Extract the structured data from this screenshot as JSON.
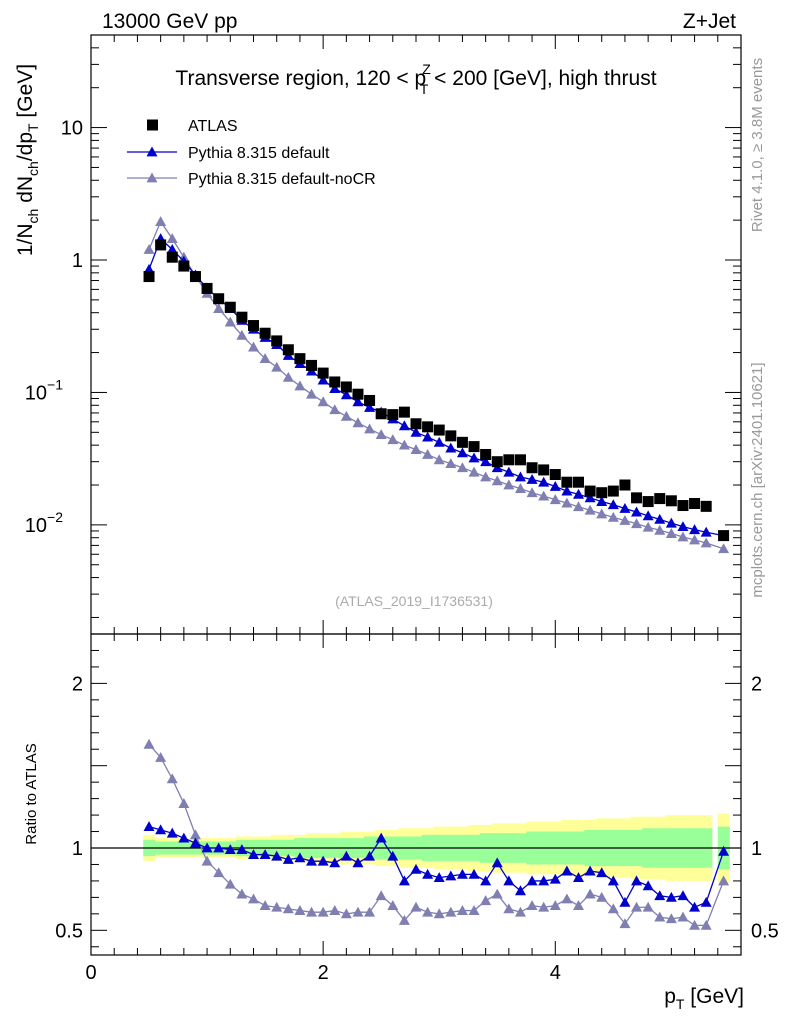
{
  "header": {
    "left": "13000 GeV pp",
    "right": "Z+Jet"
  },
  "side_labels": {
    "rivet": "Rivet 4.1.0, ≥ 3.8M events",
    "mcplots": "mcplots.cern.ch [arXiv:2401.10621]"
  },
  "colors": {
    "atlas": "#000000",
    "default": "#0000cc",
    "nocr": "#7f7fb2",
    "band_inner": "#99ff99",
    "band_outer": "#ffff99"
  },
  "chart_data": [
    {
      "type": "scatter",
      "panel": "main",
      "title": "Transverse region, 120 < p_T^Z < 200 [GeV], high thrust",
      "title_parts": {
        "a": "Transverse region, 120 < p",
        "sup": "Z",
        "sub": "T",
        "b": " < 200 [GeV], high thrust"
      },
      "watermark": "(ATLAS_2019_I1736531)",
      "xlabel": "p_T [GeV]",
      "xlabel_parts": {
        "main": "p",
        "sub": "T",
        "unit": " [GeV]"
      },
      "ylabel": "1/N_ch dN_ch/dp_T [GeV]",
      "y_scale": "log",
      "xlim": [
        0,
        5.6
      ],
      "ylim": [
        0.0015,
        50
      ],
      "x_ticks": [
        0,
        2,
        4
      ],
      "y_ticks": [
        {
          "value": 10,
          "label": "10"
        },
        {
          "value": 1,
          "label": "1"
        },
        {
          "value": 0.1,
          "label": "10",
          "exp": "−1"
        },
        {
          "value": 0.01,
          "label": "10",
          "exp": "−2"
        }
      ],
      "legend": {
        "position": "top-left"
      },
      "x": [
        0.5,
        0.6,
        0.7,
        0.8,
        0.9,
        1.0,
        1.1,
        1.2,
        1.3,
        1.4,
        1.5,
        1.6,
        1.7,
        1.8,
        1.9,
        2.0,
        2.1,
        2.2,
        2.3,
        2.4,
        2.5,
        2.6,
        2.7,
        2.8,
        2.9,
        3.0,
        3.1,
        3.2,
        3.3,
        3.4,
        3.5,
        3.6,
        3.7,
        3.8,
        3.9,
        4.0,
        4.1,
        4.2,
        4.3,
        4.4,
        4.5,
        4.6,
        4.7,
        4.8,
        4.9,
        5.0,
        5.1,
        5.2,
        5.3,
        5.45
      ],
      "series": [
        {
          "name": "ATLAS",
          "marker": "square",
          "values": [
            0.75,
            1.3,
            1.05,
            0.9,
            0.75,
            0.61,
            0.51,
            0.44,
            0.37,
            0.32,
            0.28,
            0.245,
            0.21,
            0.18,
            0.16,
            0.14,
            0.12,
            0.11,
            0.097,
            0.087,
            0.069,
            0.068,
            0.071,
            0.058,
            0.055,
            0.052,
            0.047,
            0.042,
            0.039,
            0.034,
            0.03,
            0.031,
            0.031,
            0.027,
            0.026,
            0.024,
            0.021,
            0.021,
            0.018,
            0.0175,
            0.018,
            0.02,
            0.016,
            0.015,
            0.0158,
            0.0152,
            0.014,
            0.0145,
            0.0138,
            0.0083
          ]
        },
        {
          "name": "Pythia 8.315 default",
          "marker": "triangle",
          "line": true,
          "values": [
            0.85,
            1.45,
            1.2,
            0.98,
            0.77,
            0.61,
            0.51,
            0.43,
            0.35,
            0.3,
            0.26,
            0.23,
            0.19,
            0.165,
            0.145,
            0.124,
            0.107,
            0.096,
            0.085,
            0.077,
            0.071,
            0.063,
            0.056,
            0.05,
            0.046,
            0.042,
            0.038,
            0.035,
            0.032,
            0.03,
            0.027,
            0.025,
            0.023,
            0.022,
            0.021,
            0.0195,
            0.018,
            0.017,
            0.016,
            0.015,
            0.0142,
            0.0133,
            0.0125,
            0.0117,
            0.011,
            0.0103,
            0.0097,
            0.0092,
            0.0088,
            0.0083
          ]
        },
        {
          "name": "Pythia 8.315 default-noCR",
          "marker": "triangle",
          "line": true,
          "values": [
            1.2,
            1.95,
            1.45,
            1.05,
            0.76,
            0.56,
            0.43,
            0.34,
            0.27,
            0.22,
            0.18,
            0.155,
            0.13,
            0.112,
            0.097,
            0.085,
            0.074,
            0.066,
            0.059,
            0.053,
            0.048,
            0.044,
            0.04,
            0.037,
            0.034,
            0.031,
            0.029,
            0.027,
            0.025,
            0.023,
            0.0215,
            0.02,
            0.0188,
            0.0175,
            0.0165,
            0.0155,
            0.0146,
            0.0137,
            0.0129,
            0.0121,
            0.0114,
            0.0108,
            0.0102,
            0.0096,
            0.0091,
            0.0086,
            0.0081,
            0.0077,
            0.0073,
            0.0066
          ]
        }
      ]
    },
    {
      "type": "line",
      "panel": "ratio",
      "ylabel": "Ratio to ATLAS",
      "xlim": [
        0,
        5.6
      ],
      "ylim": [
        0.35,
        2.3
      ],
      "x_ticks": [
        0,
        2,
        4
      ],
      "y_ticks": [
        {
          "value": 2,
          "label": "2"
        },
        {
          "value": 1,
          "label": "1"
        },
        {
          "value": 0.5,
          "label": "0.5"
        }
      ],
      "reference_line": 1,
      "x": [
        0.5,
        0.6,
        0.7,
        0.8,
        0.9,
        1.0,
        1.1,
        1.2,
        1.3,
        1.4,
        1.5,
        1.6,
        1.7,
        1.8,
        1.9,
        2.0,
        2.1,
        2.2,
        2.3,
        2.4,
        2.5,
        2.6,
        2.7,
        2.8,
        2.9,
        3.0,
        3.1,
        3.2,
        3.3,
        3.4,
        3.5,
        3.6,
        3.7,
        3.8,
        3.9,
        4.0,
        4.1,
        4.2,
        4.3,
        4.4,
        4.5,
        4.6,
        4.7,
        4.8,
        4.9,
        5.0,
        5.1,
        5.2,
        5.3,
        5.45
      ],
      "uncertainty_inner": [
        0.05,
        0.04,
        0.04,
        0.04,
        0.04,
        0.04,
        0.04,
        0.04,
        0.05,
        0.05,
        0.05,
        0.05,
        0.05,
        0.06,
        0.06,
        0.06,
        0.06,
        0.06,
        0.06,
        0.07,
        0.07,
        0.07,
        0.07,
        0.07,
        0.08,
        0.08,
        0.08,
        0.08,
        0.08,
        0.09,
        0.09,
        0.09,
        0.09,
        0.1,
        0.1,
        0.1,
        0.1,
        0.1,
        0.11,
        0.11,
        0.11,
        0.11,
        0.11,
        0.12,
        0.12,
        0.12,
        0.12,
        0.12,
        0.12,
        0.13
      ],
      "uncertainty_outer": [
        0.08,
        0.06,
        0.06,
        0.06,
        0.06,
        0.06,
        0.06,
        0.06,
        0.07,
        0.07,
        0.07,
        0.08,
        0.08,
        0.08,
        0.09,
        0.09,
        0.09,
        0.1,
        0.1,
        0.1,
        0.11,
        0.11,
        0.12,
        0.12,
        0.12,
        0.13,
        0.13,
        0.13,
        0.14,
        0.14,
        0.15,
        0.15,
        0.15,
        0.16,
        0.16,
        0.16,
        0.17,
        0.17,
        0.17,
        0.18,
        0.18,
        0.18,
        0.19,
        0.19,
        0.19,
        0.2,
        0.2,
        0.2,
        0.2,
        0.21
      ],
      "series": [
        {
          "name": "Pythia 8.315 default",
          "values": [
            1.13,
            1.11,
            1.09,
            1.06,
            1.03,
            1.0,
            1.0,
            0.99,
            0.99,
            0.96,
            0.96,
            0.95,
            0.93,
            0.94,
            0.92,
            0.92,
            0.91,
            0.95,
            0.91,
            0.95,
            1.06,
            0.95,
            0.8,
            0.87,
            0.84,
            0.82,
            0.83,
            0.84,
            0.84,
            0.8,
            0.91,
            0.8,
            0.74,
            0.8,
            0.8,
            0.81,
            0.86,
            0.82,
            0.86,
            0.85,
            0.8,
            0.67,
            0.8,
            0.77,
            0.71,
            0.7,
            0.71,
            0.64,
            0.67,
            0.98
          ]
        },
        {
          "name": "Pythia 8.315 default-noCR",
          "values": [
            1.63,
            1.55,
            1.42,
            1.27,
            1.08,
            0.92,
            0.85,
            0.78,
            0.72,
            0.69,
            0.65,
            0.64,
            0.63,
            0.62,
            0.61,
            0.61,
            0.62,
            0.6,
            0.61,
            0.61,
            0.71,
            0.65,
            0.56,
            0.64,
            0.61,
            0.6,
            0.61,
            0.62,
            0.62,
            0.68,
            0.72,
            0.63,
            0.61,
            0.65,
            0.64,
            0.65,
            0.69,
            0.65,
            0.72,
            0.7,
            0.63,
            0.54,
            0.64,
            0.64,
            0.58,
            0.57,
            0.58,
            0.53,
            0.53,
            0.8
          ]
        }
      ]
    }
  ]
}
